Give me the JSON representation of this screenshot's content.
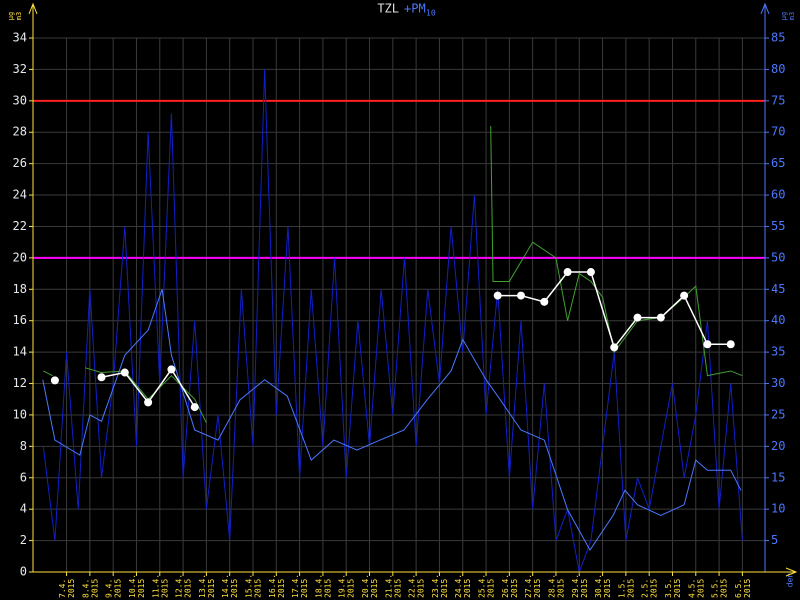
{
  "chart_data": {
    "type": "line",
    "title": "TZL",
    "title2": "+PM",
    "title2_sub": "10",
    "y_unit_num": "µg",
    "y_unit_den": "m3",
    "x_label": "den",
    "ylim": [
      0,
      34
    ],
    "yticks": [
      0,
      2,
      4,
      6,
      8,
      10,
      12,
      14,
      16,
      18,
      20,
      22,
      24,
      26,
      28,
      30,
      32,
      34
    ],
    "y2lim": [
      0,
      85
    ],
    "y2ticks": [
      5,
      10,
      15,
      20,
      25,
      30,
      35,
      40,
      45,
      50,
      55,
      60,
      65,
      70,
      75,
      80,
      85
    ],
    "xlim": [
      -0.94,
      30.47
    ],
    "grid": true,
    "categories": [
      "7.4.",
      "8.4.",
      "9.4.",
      "10.4.",
      "11.4.",
      "12.4.",
      "13.4.",
      "14.4.",
      "15.4.",
      "16.4.",
      "17.4.",
      "18.4.",
      "19.4.",
      "20.4.",
      "21.4.",
      "22.4.",
      "23.4.",
      "24.4.",
      "25.4.",
      "26.4.",
      "27.4.",
      "28.4.",
      "29.4.",
      "30.4.",
      "1.5.",
      "2.5.",
      "3.5.",
      "4.5.",
      "5.5.",
      "6.5."
    ],
    "year": "2015",
    "limits": [
      {
        "value": 30,
        "color": "#ff2020"
      },
      {
        "value": 20,
        "color": "#ff00ff"
      }
    ],
    "series": [
      {
        "color": "#1020c8",
        "axis": "y2",
        "x": [
          -0.5,
          0,
          0.5,
          1,
          1.5,
          2,
          2.5,
          3,
          3.5,
          4,
          4.5,
          5,
          5.5,
          6,
          6.5,
          7,
          7.5,
          8,
          8.5,
          9,
          9.5,
          10,
          10.5,
          11,
          11.5,
          12,
          12.5,
          13,
          13.5,
          14,
          14.5,
          15,
          15.5,
          16,
          16.5,
          17,
          17.5,
          18,
          18.5,
          19,
          19.5,
          20,
          20.5,
          21,
          21.5,
          22,
          22.5,
          23,
          23.5,
          24,
          24.5,
          25,
          25.5,
          26,
          26.5,
          27,
          27.5,
          28,
          28.5,
          29,
          29.5
        ],
        "values": [
          20,
          5,
          35,
          10,
          45,
          15,
          30,
          55,
          20,
          70,
          30,
          73,
          15,
          40,
          10,
          25,
          5,
          45,
          20,
          80,
          25,
          55,
          15,
          45,
          20,
          50,
          15,
          40,
          20,
          45,
          25,
          50,
          20,
          45,
          30,
          55,
          35,
          60,
          25,
          45,
          15,
          40,
          10,
          30,
          5,
          10,
          0,
          5,
          20,
          35,
          5,
          15,
          10,
          20,
          30,
          15,
          25,
          40,
          10,
          30,
          5
        ]
      },
      {
        "color": "#4a78ff",
        "axis": "y2",
        "x": [
          -0.52,
          0,
          1.07,
          1.5,
          2,
          3,
          4,
          4.6,
          5,
          6,
          7,
          7.94,
          9,
          9.97,
          11,
          11.97,
          12.96,
          13.95,
          14.98,
          15.97,
          17,
          17.5,
          18.5,
          19,
          20,
          21,
          22,
          22.96,
          23.95,
          24.46,
          25,
          26,
          27,
          27.5,
          28,
          29,
          29.44
        ],
        "values": [
          30.6,
          21,
          18.6,
          25,
          24,
          34.5,
          38.5,
          45,
          34.5,
          22.6,
          21,
          27.4,
          30.6,
          28,
          17.8,
          21,
          19.4,
          21,
          22.6,
          27.4,
          32,
          37,
          30.6,
          28,
          22.6,
          21,
          9.9,
          3.5,
          9,
          13,
          10.7,
          9,
          10.7,
          17.8,
          16.2,
          16.2,
          13
        ]
      },
      {
        "color": "#40a030",
        "axis": "y",
        "x": [
          -0.5,
          -0.1,
          0.5,
          1.3,
          2,
          3,
          4,
          5,
          6,
          6.5,
          7,
          18.6,
          18.7,
          18.8,
          19.5,
          20.5,
          21.5,
          22,
          22.5,
          23,
          23.5,
          24,
          24.5,
          25,
          26,
          27,
          27.5,
          28,
          29,
          29.5
        ],
        "values": [
          12.8,
          12.5,
          null,
          13,
          12.7,
          12.8,
          11,
          12.5,
          11,
          9.5,
          null,
          null,
          28.4,
          18.5,
          18.5,
          21,
          20,
          16,
          19,
          18.5,
          17.5,
          14,
          15,
          16,
          16.2,
          17.5,
          18.2,
          12.5,
          12.8,
          12.5
        ]
      },
      {
        "color": "#ffffff",
        "axis": "y",
        "markers": true,
        "x": [
          0,
          1,
          2,
          3,
          4,
          5,
          6,
          7,
          8,
          9,
          10,
          11,
          12,
          13,
          14,
          15,
          16,
          17,
          18,
          19,
          20,
          21,
          22,
          23,
          24,
          25,
          26,
          27,
          28,
          29
        ],
        "values": [
          12.2,
          null,
          12.4,
          12.7,
          10.8,
          12.9,
          10.5,
          null,
          null,
          null,
          null,
          null,
          null,
          null,
          null,
          null,
          null,
          null,
          null,
          17.6,
          17.6,
          17.2,
          19.1,
          19.1,
          14.3,
          16.2,
          16.2,
          17.6,
          14.5,
          14.5
        ]
      }
    ]
  }
}
